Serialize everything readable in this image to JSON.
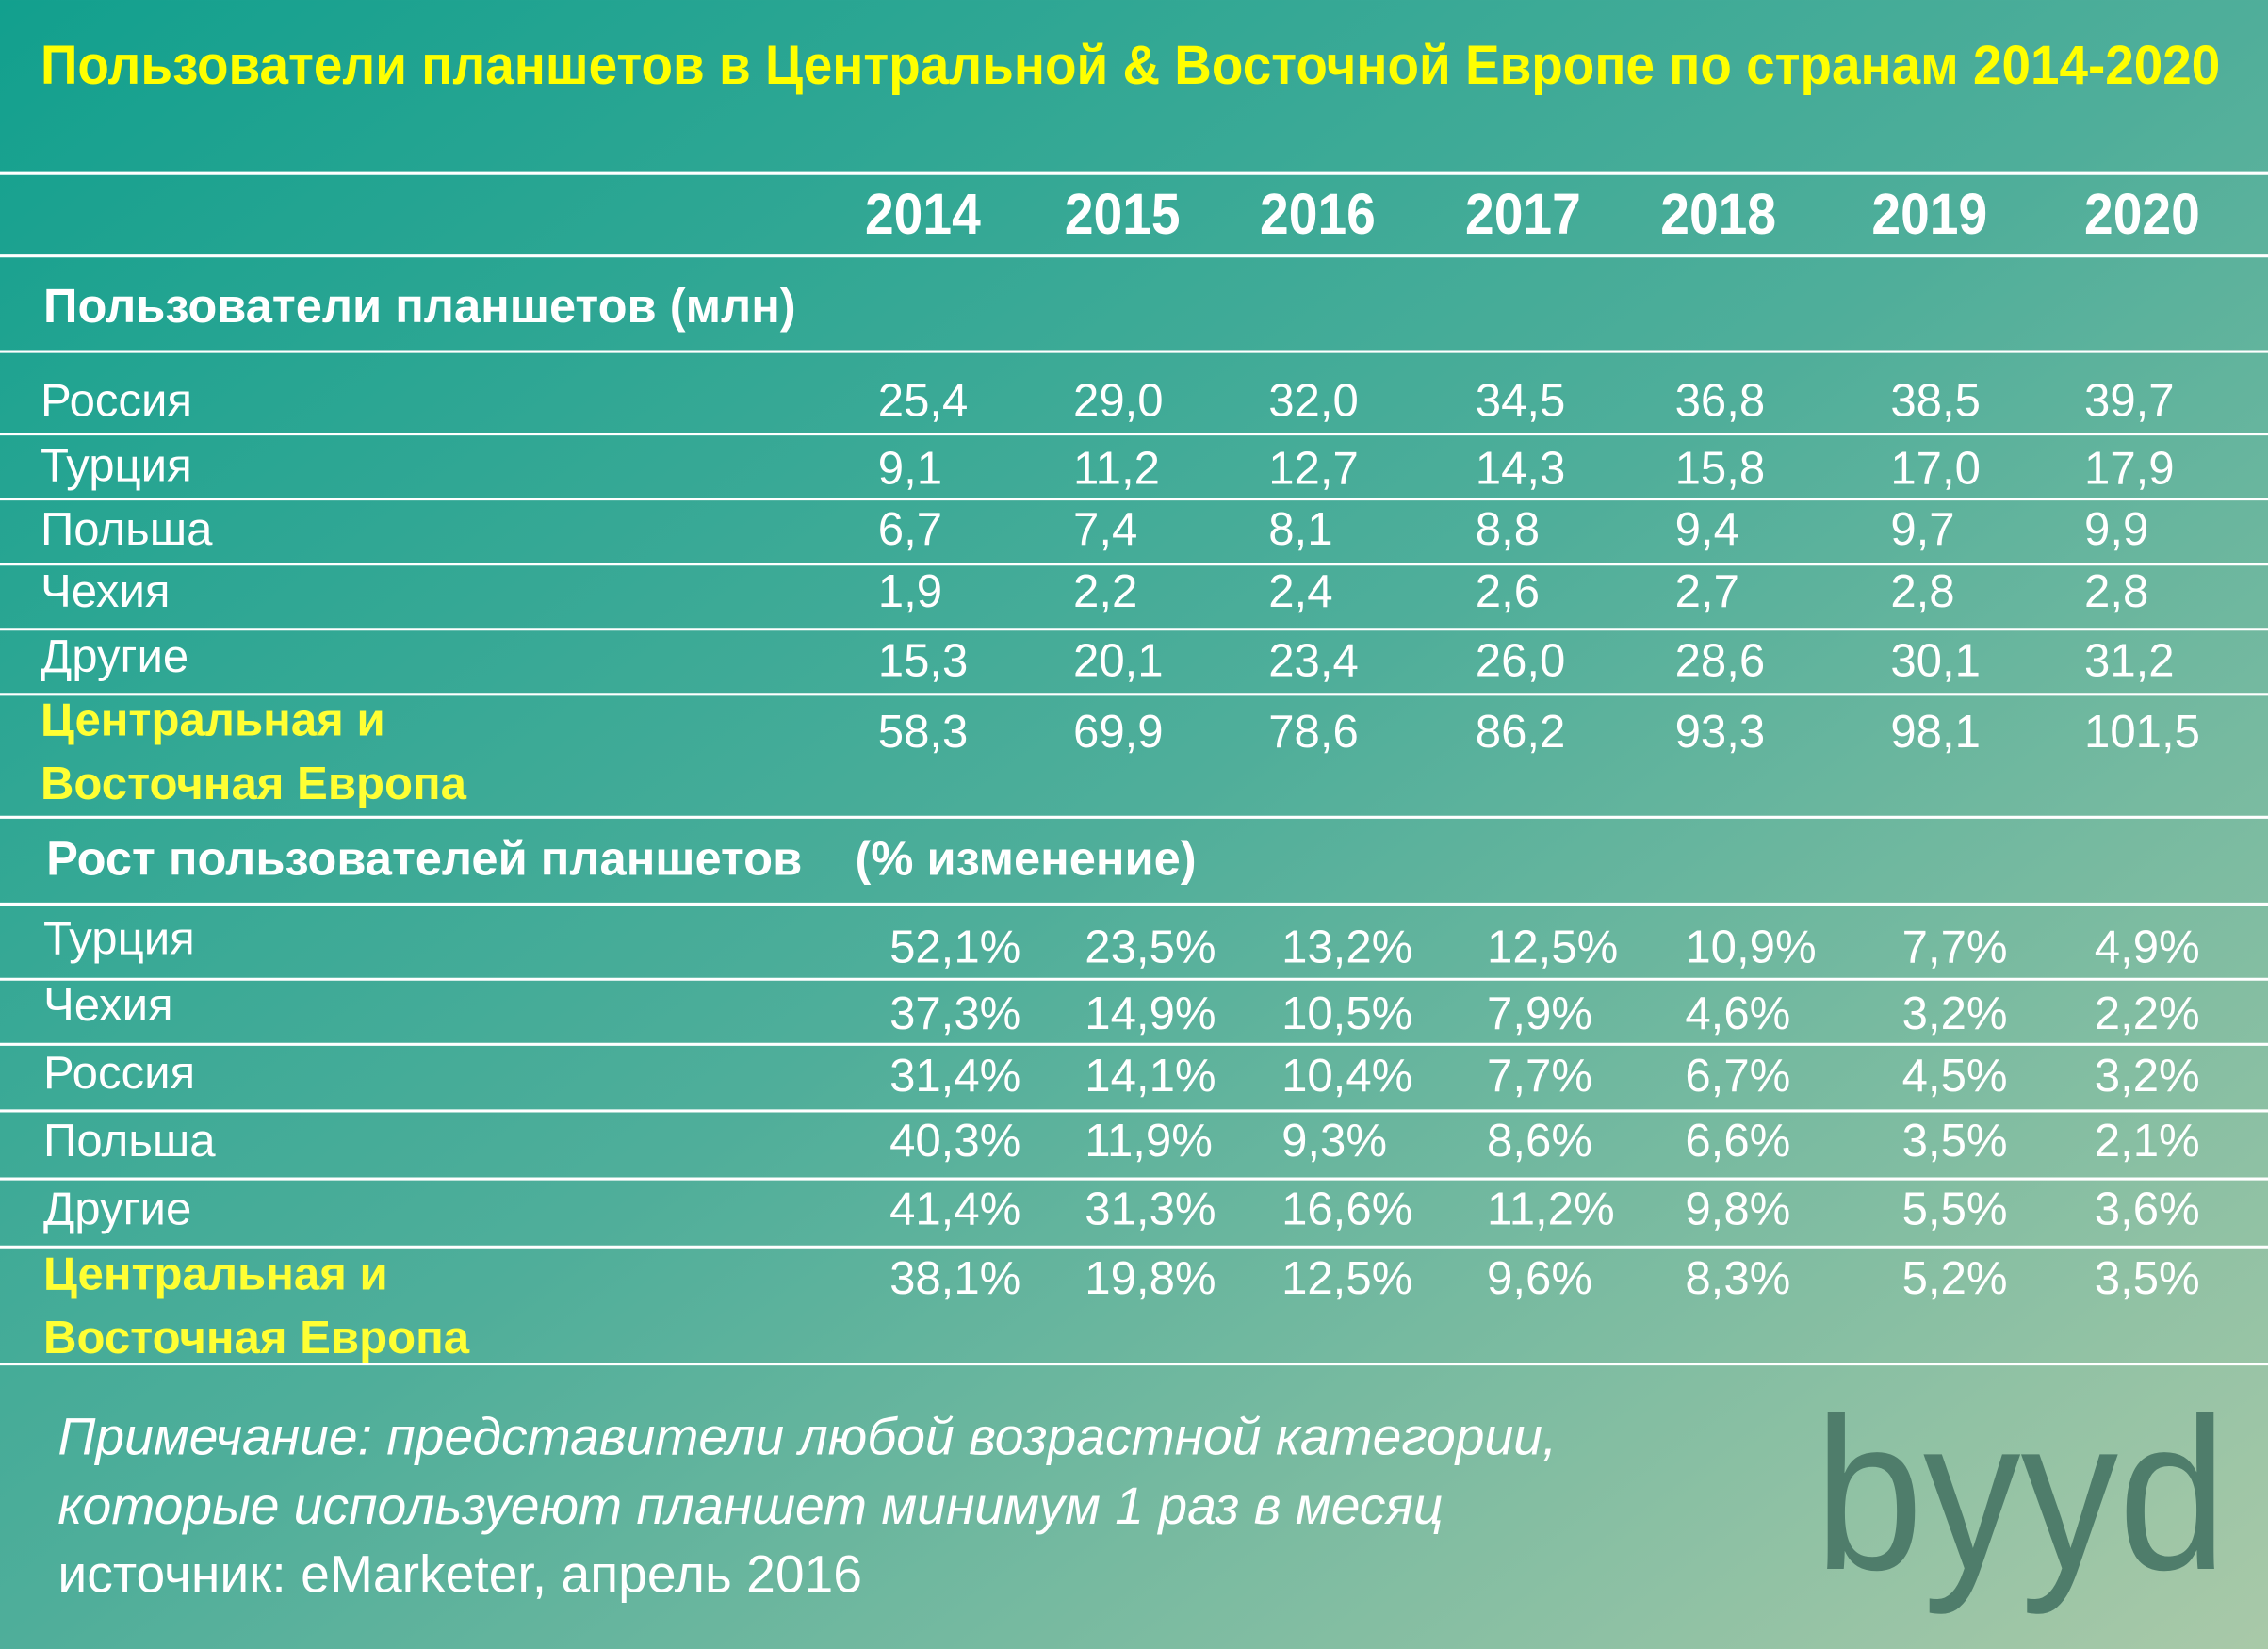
{
  "title": "Пользователи планшетов в Центральной & Восточной Европе по странам 2014-2020",
  "columns": [
    "2014",
    "2015",
    "2016",
    "2017",
    "2018",
    "2019",
    "2020"
  ],
  "sections": [
    {
      "heading": "Пользователи планшетов (млн)",
      "rows": [
        {
          "label": "Россия",
          "values": [
            "25,4",
            "29,0",
            "32,0",
            "34,5",
            "36,8",
            "38,5",
            "39,7"
          ]
        },
        {
          "label": "Турция",
          "values": [
            "9,1",
            "11,2",
            "12,7",
            "14,3",
            "15,8",
            "17,0",
            "17,9"
          ]
        },
        {
          "label": "Польша",
          "values": [
            "6,7",
            "7,4",
            "8,1",
            "8,8",
            "9,4",
            "9,7",
            "9,9"
          ]
        },
        {
          "label": "Чехия",
          "values": [
            "1,9",
            "2,2",
            "2,4",
            "2,6",
            "2,7",
            "2,8",
            "2,8"
          ]
        },
        {
          "label": "Другие",
          "values": [
            "15,3",
            "20,1",
            "23,4",
            "26,0",
            "28,6",
            "30,1",
            "31,2"
          ]
        },
        {
          "label": "Центральная и\nВосточная Европа",
          "values": [
            "58,3",
            "69,9",
            "78,6",
            "86,2",
            "93,3",
            "98,1",
            "101,5"
          ]
        }
      ]
    },
    {
      "heading": "Рост пользователей планшетов    (% изменение)",
      "rows": [
        {
          "label": "Турция",
          "values": [
            "52,1%",
            "23,5%",
            "13,2%",
            "12,5%",
            "10,9%",
            "7,7%",
            "4,9%"
          ]
        },
        {
          "label": "Чехия",
          "values": [
            "37,3%",
            "14,9%",
            "10,5%",
            "7,9%",
            "4,6%",
            "3,2%",
            "2,2%"
          ]
        },
        {
          "label": "Россия",
          "values": [
            "31,4%",
            "14,1%",
            "10,4%",
            "7,7%",
            "6,7%",
            "4,5%",
            "3,2%"
          ]
        },
        {
          "label": "Польша",
          "values": [
            "40,3%",
            "11,9%",
            "9,3%",
            "8,6%",
            "6,6%",
            "3,5%",
            "2,1%"
          ]
        },
        {
          "label": "Другие",
          "values": [
            "41,4%",
            "31,3%",
            "16,6%",
            "11,2%",
            "9,8%",
            "5,5%",
            "3,6%"
          ]
        },
        {
          "label": "Центральная и\nВосточная Европа",
          "values": [
            "38,1%",
            "19,8%",
            "12,5%",
            "9,6%",
            "8,3%",
            "5,2%",
            "3,5%"
          ]
        }
      ]
    }
  ],
  "note": [
    "Примечание: представители любой возрастной категории,",
    "которые используеют планшет минимум 1 раз в месяц"
  ],
  "source": "источник: eMarketer, апрель 2016",
  "logo": "byyd"
}
